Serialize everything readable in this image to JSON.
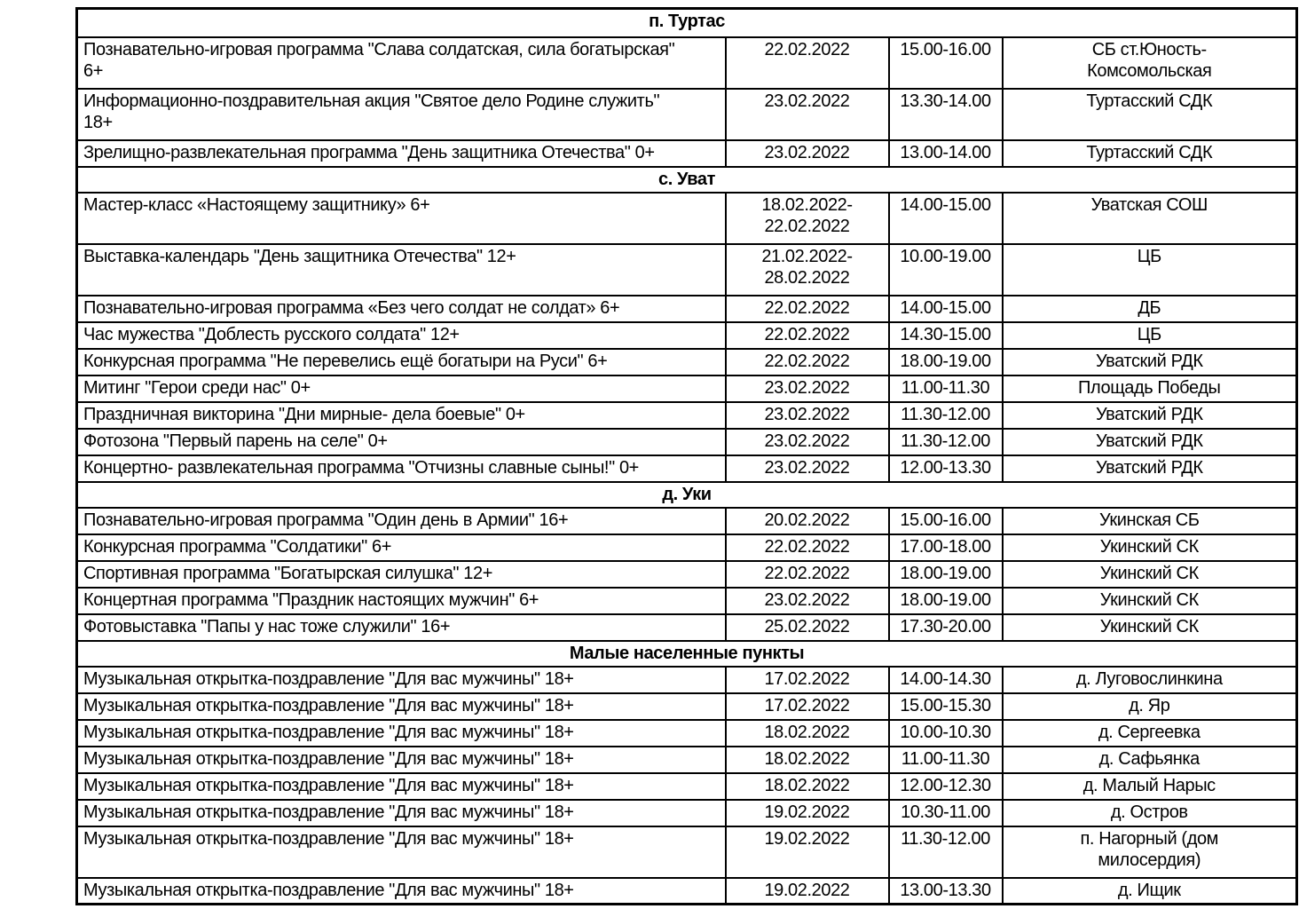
{
  "schedule": {
    "sections": [
      {
        "header": "п. Туртас",
        "rows": [
          {
            "event": "Познавательно-игровая программа \"Слава солдатская, сила богатырская\"\n6+",
            "date": "22.02.2022",
            "time": "15.00-16.00",
            "location": "СБ ст.Юность-\nКомсомольская"
          },
          {
            "event": "Информационно-поздравительная акция \"Святое дело Родине служить\"\n18+",
            "date": "23.02.2022",
            "time": "13.30-14.00",
            "location": "Туртасский СДК"
          },
          {
            "event": "Зрелищно-развлекательная программа \"День защитника Отечества\" 0+",
            "date": "23.02.2022",
            "time": "13.00-14.00",
            "location": "Туртасский СДК"
          }
        ]
      },
      {
        "header": "с. Уват",
        "rows": [
          {
            "event": "Мастер-класс «Настоящему защитнику» 6+",
            "date": "18.02.2022-\n22.02.2022",
            "time": "14.00-15.00",
            "location": "Уватская СОШ"
          },
          {
            "event": "Выставка-календарь \"День защитника Отечества\" 12+",
            "date": "21.02.2022-\n28.02.2022",
            "time": "10.00-19.00",
            "location": "ЦБ"
          },
          {
            "event": "Познавательно-игровая программа «Без чего солдат не солдат» 6+",
            "date": "22.02.2022",
            "time": "14.00-15.00",
            "location": "ДБ"
          },
          {
            "event": "Час мужества \"Доблесть русского солдата\" 12+",
            "date": "22.02.2022",
            "time": "14.30-15.00",
            "location": "ЦБ"
          },
          {
            "event": "Конкурсная программа \"Не перевелись ещё богатыри на Руси\" 6+",
            "date": "22.02.2022",
            "time": "18.00-19.00",
            "location": "Уватский РДК"
          },
          {
            "event": "Митинг \"Герои среди нас\" 0+",
            "date": "23.02.2022",
            "time": "11.00-11.30",
            "location": "Площадь Победы"
          },
          {
            "event": "Праздничная викторина \"Дни мирные- дела боевые\" 0+",
            "date": "23.02.2022",
            "time": "11.30-12.00",
            "location": "Уватский РДК"
          },
          {
            "event": "Фотозона \"Первый парень на селе\" 0+",
            "date": "23.02.2022",
            "time": "11.30-12.00",
            "location": "Уватский РДК"
          },
          {
            "event": "Концертно- развлекательная программа \"Отчизны славные сыны!\" 0+",
            "date": "23.02.2022",
            "time": "12.00-13.30",
            "location": "Уватский РДК"
          }
        ]
      },
      {
        "header": "д. Уки",
        "rows": [
          {
            "event": "Познавательно-игровая программа \"Один день в Армии\" 16+",
            "date": "20.02.2022",
            "time": "15.00-16.00",
            "location": "Укинская СБ"
          },
          {
            "event": "Конкурсная программа \"Солдатики\" 6+",
            "date": "22.02.2022",
            "time": "17.00-18.00",
            "location": "Укинский СК"
          },
          {
            "event": "Спортивная программа \"Богатырская силушка\" 12+",
            "date": "22.02.2022",
            "time": "18.00-19.00",
            "location": "Укинский СК"
          },
          {
            "event": "Концертная программа \"Праздник настоящих мужчин\" 6+",
            "date": "23.02.2022",
            "time": "18.00-19.00",
            "location": "Укинский СК"
          },
          {
            "event": "Фотовыставка \"Папы у нас тоже служили\" 16+",
            "date": "25.02.2022",
            "time": "17.30-20.00",
            "location": "Укинский СК"
          }
        ]
      },
      {
        "header": "Малые населенные пункты",
        "rows": [
          {
            "event": "Музыкальная открытка-поздравление \"Для вас мужчины\" 18+",
            "date": "17.02.2022",
            "time": "14.00-14.30",
            "location": "д. Луговослинкина"
          },
          {
            "event": "Музыкальная открытка-поздравление \"Для вас мужчины\" 18+",
            "date": "17.02.2022",
            "time": "15.00-15.30",
            "location": "д. Яр"
          },
          {
            "event": "Музыкальная открытка-поздравление \"Для вас мужчины\" 18+",
            "date": "18.02.2022",
            "time": "10.00-10.30",
            "location": "д. Сергеевка"
          },
          {
            "event": "Музыкальная открытка-поздравление \"Для вас мужчины\" 18+",
            "date": "18.02.2022",
            "time": "11.00-11.30",
            "location": "д. Сафьянка"
          },
          {
            "event": "Музыкальная открытка-поздравление \"Для вас мужчины\" 18+",
            "date": "18.02.2022",
            "time": "12.00-12.30",
            "location": "д. Малый Нарыс"
          },
          {
            "event": "Музыкальная открытка-поздравление \"Для вас мужчины\" 18+",
            "date": "19.02.2022",
            "time": "10.30-11.00",
            "location": "д. Остров"
          },
          {
            "event": "Музыкальная открытка-поздравление \"Для вас мужчины\" 18+",
            "date": "19.02.2022",
            "time": "11.30-12.00",
            "location": "п. Нагорный (дом\nмилосердия)"
          },
          {
            "event": "Музыкальная открытка-поздравление \"Для вас мужчины\" 18+",
            "date": "19.02.2022",
            "time": "13.00-13.30",
            "location": "д. Ищик"
          }
        ]
      }
    ]
  }
}
